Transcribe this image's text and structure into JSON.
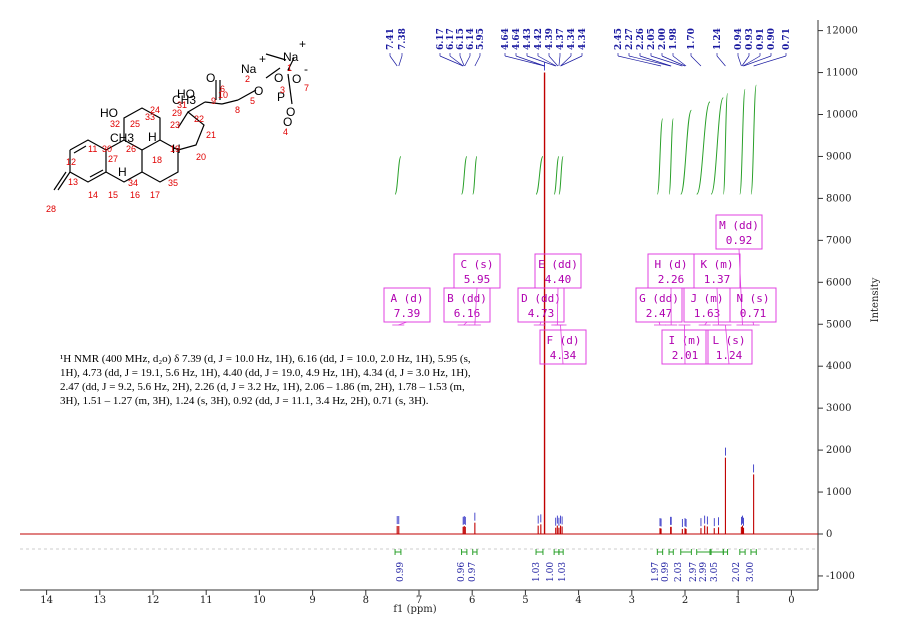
{
  "chart_data": {
    "type": "line",
    "xlabel": "f1 (ppm)",
    "ylabel": "Intensity",
    "xlim": [
      14.5,
      -0.5
    ],
    "ylim": [
      -1200,
      12100
    ],
    "x_ticks": [
      "14",
      "13",
      "12",
      "11",
      "10",
      "9",
      "8",
      "7",
      "6",
      "5",
      "4",
      "3",
      "2",
      "1",
      "0"
    ],
    "y_ticks": [
      "-1000",
      "0",
      "1000",
      "2000",
      "3000",
      "4000",
      "5000",
      "6000",
      "7000",
      "8000",
      "9000",
      "10000",
      "11000",
      "12000"
    ],
    "peak_labels": [
      "7.41",
      "7.38",
      "6.17",
      "6.17",
      "6.15",
      "6.14",
      "5.95",
      "4.64",
      "4.64",
      "4.43",
      "4.42",
      "4.39",
      "4.37",
      "4.34",
      "4.34",
      "2.45",
      "2.27",
      "2.26",
      "2.05",
      "2.00",
      "1.98",
      "1.70",
      "1.24",
      "0.94",
      "0.93",
      "0.91",
      "0.90",
      "0.71"
    ],
    "peaks": [
      {
        "ppm": 7.41,
        "h": 190
      },
      {
        "ppm": 7.38,
        "h": 190
      },
      {
        "ppm": 6.17,
        "h": 170
      },
      {
        "ppm": 6.15,
        "h": 190
      },
      {
        "ppm": 6.13,
        "h": 170
      },
      {
        "ppm": 5.95,
        "h": 270
      },
      {
        "ppm": 4.76,
        "h": 200
      },
      {
        "ppm": 4.71,
        "h": 230
      },
      {
        "ppm": 4.64,
        "h": 11000
      },
      {
        "ppm": 4.43,
        "h": 150
      },
      {
        "ppm": 4.4,
        "h": 200
      },
      {
        "ppm": 4.37,
        "h": 150
      },
      {
        "ppm": 4.34,
        "h": 200
      },
      {
        "ppm": 4.31,
        "h": 180
      },
      {
        "ppm": 2.47,
        "h": 140
      },
      {
        "ppm": 2.45,
        "h": 130
      },
      {
        "ppm": 2.27,
        "h": 170
      },
      {
        "ppm": 2.26,
        "h": 170
      },
      {
        "ppm": 2.05,
        "h": 120
      },
      {
        "ppm": 2.0,
        "h": 140
      },
      {
        "ppm": 1.98,
        "h": 120
      },
      {
        "ppm": 1.7,
        "h": 140
      },
      {
        "ppm": 1.63,
        "h": 200
      },
      {
        "ppm": 1.58,
        "h": 180
      },
      {
        "ppm": 1.45,
        "h": 140
      },
      {
        "ppm": 1.37,
        "h": 160
      },
      {
        "ppm": 1.24,
        "h": 1820
      },
      {
        "ppm": 0.94,
        "h": 170
      },
      {
        "ppm": 0.92,
        "h": 200
      },
      {
        "ppm": 0.9,
        "h": 150
      },
      {
        "ppm": 0.71,
        "h": 1420
      }
    ],
    "integrals": [
      {
        "from": 7.45,
        "to": 7.34,
        "value": "0.99",
        "y0": 8100,
        "y1": 9000
      },
      {
        "from": 6.2,
        "to": 6.1,
        "value": "0.96",
        "y0": 8100,
        "y1": 9000
      },
      {
        "from": 5.99,
        "to": 5.91,
        "value": "0.97",
        "y0": 8100,
        "y1": 9000
      },
      {
        "from": 4.8,
        "to": 4.67,
        "value": "1.03",
        "y0": 8100,
        "y1": 9000
      },
      {
        "from": 4.46,
        "to": 4.37,
        "value": "1.00",
        "y0": 8100,
        "y1": 9000
      },
      {
        "from": 4.37,
        "to": 4.29,
        "value": "1.03",
        "y0": 8100,
        "y1": 9000
      },
      {
        "from": 2.52,
        "to": 2.42,
        "value": "1.97",
        "y0": 8100,
        "y1": 9900
      },
      {
        "from": 2.3,
        "to": 2.22,
        "value": "0.99",
        "y0": 8100,
        "y1": 9900
      },
      {
        "from": 2.08,
        "to": 1.88,
        "value": "2.03",
        "y0": 8100,
        "y1": 10100
      },
      {
        "from": 1.78,
        "to": 1.53,
        "value": "2.97",
        "y0": 8100,
        "y1": 10300
      },
      {
        "from": 1.51,
        "to": 1.28,
        "value": "2.99",
        "y0": 8100,
        "y1": 10400
      },
      {
        "from": 1.28,
        "to": 1.2,
        "value": "3.05",
        "y0": 8100,
        "y1": 10500
      },
      {
        "from": 0.97,
        "to": 0.87,
        "value": "2.02",
        "y0": 8100,
        "y1": 10600
      },
      {
        "from": 0.76,
        "to": 0.66,
        "value": "3.00",
        "y0": 8100,
        "y1": 10700
      }
    ],
    "multiplets": [
      {
        "letter": "A (d)",
        "shift": "7.39",
        "ppm": 7.39
      },
      {
        "letter": "B (dd)",
        "shift": "6.16",
        "ppm": 6.16
      },
      {
        "letter": "C (s)",
        "shift": "5.95",
        "ppm": 5.95
      },
      {
        "letter": "D (dd)",
        "shift": "4.73",
        "ppm": 4.73
      },
      {
        "letter": "E (dd)",
        "shift": "4.40",
        "ppm": 4.4
      },
      {
        "letter": "F (d)",
        "shift": "4.34",
        "ppm": 4.34
      },
      {
        "letter": "G (dd)",
        "shift": "2.47",
        "ppm": 2.47
      },
      {
        "letter": "H (d)",
        "shift": "2.26",
        "ppm": 2.26
      },
      {
        "letter": "I (m)",
        "shift": "2.01",
        "ppm": 2.01
      },
      {
        "letter": "J (m)",
        "shift": "1.63",
        "ppm": 1.63
      },
      {
        "letter": "K (m)",
        "shift": "1.37",
        "ppm": 1.37
      },
      {
        "letter": "L (s)",
        "shift": "1.24",
        "ppm": 1.24
      },
      {
        "letter": "M (dd)",
        "shift": "0.92",
        "ppm": 0.92
      },
      {
        "letter": "N (s)",
        "shift": "0.71",
        "ppm": 0.71
      }
    ],
    "description_lines": [
      "¹H NMR (400 MHz, d₂o) δ 7.39 (d, J = 10.0 Hz, 1H), 6.16 (dd, J = 10.0, 2.0 Hz, 1H), 5.95 (s,",
      "1H), 4.73 (dd, J = 19.1, 5.6 Hz, 1H), 4.40 (dd, J = 19.0, 4.9 Hz, 1H), 4.34 (d, J = 3.0 Hz, 1H),",
      "2.47 (dd, J = 9.2, 5.6 Hz, 2H), 2.26 (d, J = 3.2 Hz, 1H), 2.06 – 1.86 (m, 2H), 1.78 – 1.53 (m,",
      "3H), 1.51 – 1.27 (m, 3H), 1.24 (s, 3H), 0.92 (dd, J = 11.1, 3.4 Hz, 2H), 0.71 (s, 3H)."
    ],
    "colors": {
      "spectrum": "#c00000",
      "integral": "#2aa02a",
      "multiplet": "#e040e0",
      "peak_label": "#1a1aa0"
    }
  },
  "structure": {
    "atoms": [
      "Na",
      "+",
      "Na",
      "+",
      "O",
      "-",
      "O",
      "-",
      "HO",
      "O",
      "O",
      "P",
      "O",
      "O",
      "HO",
      "CH3",
      "CH3",
      "H",
      "H",
      "H"
    ],
    "numbers": [
      "1",
      "2",
      "3",
      "4",
      "5",
      "6",
      "7",
      "8",
      "9",
      "10",
      "11",
      "12",
      "13",
      "14",
      "15",
      "16",
      "17",
      "18",
      "19",
      "20",
      "21",
      "22",
      "23",
      "24",
      "25",
      "26",
      "27",
      "28",
      "29",
      "30",
      "31",
      "32",
      "33",
      "34",
      "35"
    ]
  }
}
